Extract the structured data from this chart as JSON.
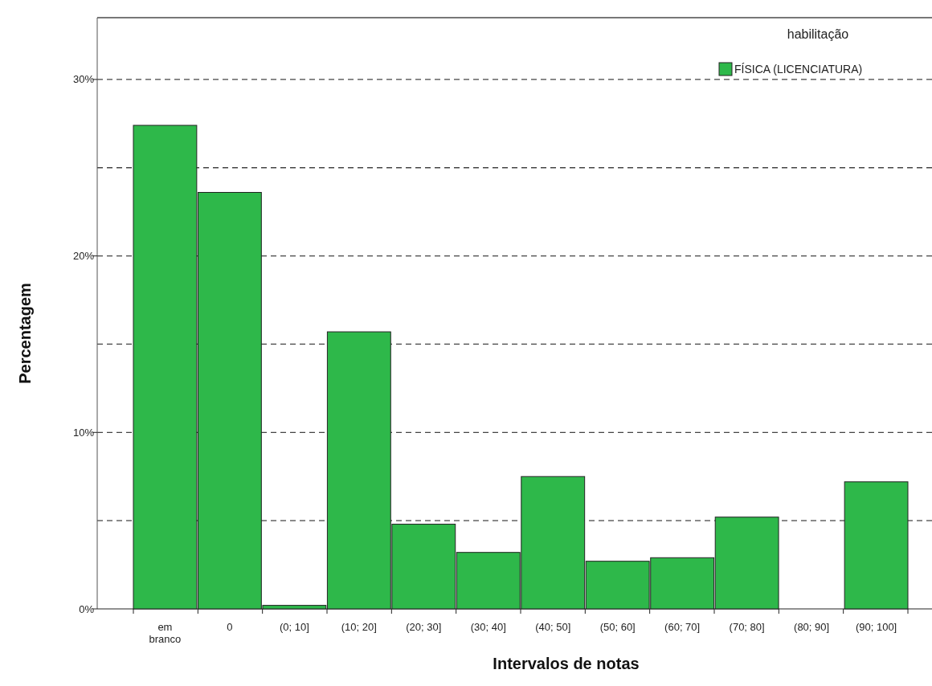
{
  "chart_data": {
    "type": "bar",
    "xlabel": "Intervalos de notas",
    "ylabel": "Percentagem",
    "legend_title": "habilitação",
    "categories": [
      "em\nbranco",
      "0",
      "(0; 10]",
      "(10; 20]",
      "(20; 30]",
      "(30; 40]",
      "(40; 50]",
      "(50; 60]",
      "(60; 70]",
      "(70; 80]",
      "(80; 90]",
      "(90; 100]"
    ],
    "series": [
      {
        "name": "FÍSICA (LICENCIATURA)",
        "color": "#2eb84a",
        "values": [
          27.4,
          23.6,
          0.2,
          15.7,
          4.8,
          3.2,
          7.5,
          2.7,
          2.9,
          5.2,
          0,
          7.2
        ]
      }
    ],
    "ylim": [
      0,
      33.5
    ],
    "yticks": [
      {
        "value": 0,
        "label": "0%"
      },
      {
        "value": 5,
        "label": null
      },
      {
        "value": 10,
        "label": "10%"
      },
      {
        "value": 15,
        "label": null
      },
      {
        "value": 20,
        "label": "20%"
      },
      {
        "value": 25,
        "label": null
      },
      {
        "value": 30,
        "label": "30%"
      }
    ],
    "grid": "y",
    "legend": "top right"
  }
}
